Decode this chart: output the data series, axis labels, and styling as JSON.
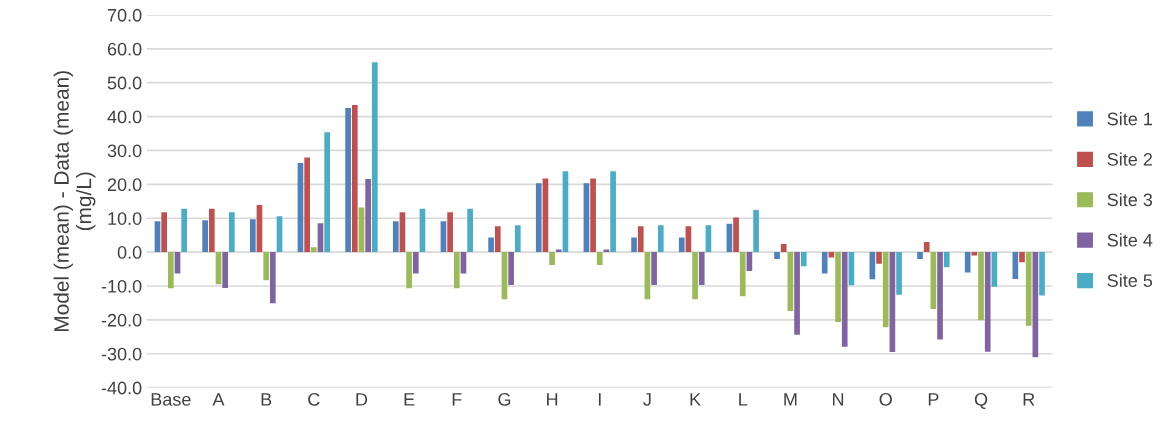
{
  "chart_data": {
    "type": "bar",
    "ylabel": "Model (mean) - Data (mean)\n(mg/L)",
    "categories": [
      "Base",
      "A",
      "B",
      "C",
      "D",
      "E",
      "F",
      "G",
      "H",
      "I",
      "J",
      "K",
      "L",
      "M",
      "N",
      "O",
      "P",
      "Q",
      "R"
    ],
    "series": [
      {
        "name": "Site 1",
        "color": "#4f81bd",
        "values": [
          9.1,
          9.4,
          9.7,
          26.3,
          42.5,
          9.1,
          9.1,
          4.3,
          20.3,
          20.3,
          4.3,
          4.3,
          8.4,
          -2.0,
          -6.3,
          -8.0,
          -2.0,
          -6.0,
          -7.9
        ]
      },
      {
        "name": "Site 2",
        "color": "#c0504d",
        "values": [
          11.8,
          12.8,
          13.9,
          27.9,
          43.4,
          11.8,
          11.8,
          7.6,
          21.7,
          21.7,
          7.6,
          7.6,
          10.2,
          2.4,
          -1.6,
          -3.4,
          3.0,
          -1.0,
          -3.0
        ]
      },
      {
        "name": "Site 3",
        "color": "#9bbb59",
        "values": [
          -10.7,
          -9.5,
          -8.3,
          1.4,
          13.2,
          -10.7,
          -10.7,
          -13.9,
          -3.8,
          -3.8,
          -13.9,
          -13.9,
          -13.0,
          -17.4,
          -20.6,
          -22.2,
          -16.8,
          -20.1,
          -21.7
        ]
      },
      {
        "name": "Site 4",
        "color": "#8064a2",
        "values": [
          -6.3,
          -10.6,
          -15.1,
          8.5,
          21.6,
          -6.3,
          -6.3,
          -9.7,
          0.8,
          0.8,
          -9.7,
          -9.7,
          -5.6,
          -24.4,
          -27.9,
          -29.5,
          -25.8,
          -29.4,
          -31.0
        ]
      },
      {
        "name": "Site 5",
        "color": "#4bacc6",
        "values": [
          12.8,
          11.8,
          10.6,
          35.4,
          56.0,
          12.8,
          12.8,
          7.9,
          23.9,
          23.9,
          7.9,
          7.9,
          12.4,
          -4.2,
          -9.8,
          -12.6,
          -4.5,
          -10.2,
          -12.8
        ]
      }
    ],
    "ylim": [
      -40,
      70
    ],
    "yticks": [
      {
        "value": -40,
        "label": "-40.0"
      },
      {
        "value": -30,
        "label": "-30.0"
      },
      {
        "value": -20,
        "label": "-20.0"
      },
      {
        "value": -10,
        "label": "-10.0"
      },
      {
        "value": 0,
        "label": "0.0"
      },
      {
        "value": 10,
        "label": "10.0"
      },
      {
        "value": 20,
        "label": "20.0"
      },
      {
        "value": 30,
        "label": "30.0"
      },
      {
        "value": 40,
        "label": "40.0"
      },
      {
        "value": 50,
        "label": "50.0"
      },
      {
        "value": 60,
        "label": "60.0"
      },
      {
        "value": 70,
        "label": "70.0"
      }
    ],
    "grid": "y",
    "legend": "right"
  }
}
